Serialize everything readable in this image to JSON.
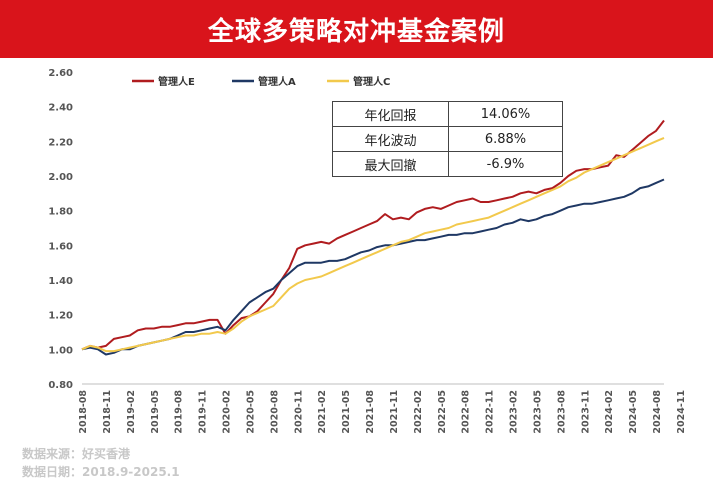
{
  "header": {
    "title": "全球多策略对冲基金案例"
  },
  "stats": [
    {
      "label": "年化回报",
      "value": "14.06%"
    },
    {
      "label": "年化波动",
      "value": "6.88%"
    },
    {
      "label": "最大回撤",
      "value": "-6.9%"
    }
  ],
  "footer": {
    "source": "数据来源：好买香港",
    "date": "数据日期：2018.9-2025.1"
  },
  "chart_data": {
    "type": "line",
    "y_ticks": [
      "2.60",
      "2.40",
      "2.20",
      "2.00",
      "1.80",
      "1.60",
      "1.40",
      "1.20",
      "1.00",
      "0.80"
    ],
    "ylim": [
      0.8,
      2.6
    ],
    "x_tick_labels": [
      "2018-08",
      "2018-11",
      "2019-02",
      "2019-05",
      "2019-08",
      "2019-11",
      "2020-02",
      "2020-05",
      "2020-08",
      "2020-11",
      "2021-02",
      "2021-05",
      "2021-08",
      "2021-11",
      "2022-02",
      "2022-05",
      "2022-08",
      "2022-11",
      "2023-02",
      "2023-05",
      "2023-08",
      "2023-11",
      "2024-02",
      "2024-05",
      "2024-08",
      "2024-11"
    ],
    "grid": false,
    "legend_position": "top-left",
    "series": [
      {
        "name": "管理人E",
        "color": "#b01c1f",
        "points": [
          [
            0,
            1.0
          ],
          [
            1,
            1.02
          ],
          [
            2,
            1.01
          ],
          [
            3,
            1.02
          ],
          [
            4,
            1.06
          ],
          [
            5,
            1.07
          ],
          [
            6,
            1.08
          ],
          [
            7,
            1.11
          ],
          [
            8,
            1.12
          ],
          [
            9,
            1.12
          ],
          [
            10,
            1.13
          ],
          [
            11,
            1.13
          ],
          [
            12,
            1.14
          ],
          [
            13,
            1.15
          ],
          [
            14,
            1.15
          ],
          [
            15,
            1.16
          ],
          [
            16,
            1.17
          ],
          [
            17,
            1.17
          ],
          [
            18,
            1.09
          ],
          [
            19,
            1.14
          ],
          [
            20,
            1.18
          ],
          [
            21,
            1.19
          ],
          [
            22,
            1.22
          ],
          [
            23,
            1.27
          ],
          [
            24,
            1.32
          ],
          [
            25,
            1.4
          ],
          [
            26,
            1.47
          ],
          [
            27,
            1.58
          ],
          [
            28,
            1.6
          ],
          [
            29,
            1.61
          ],
          [
            30,
            1.62
          ],
          [
            31,
            1.61
          ],
          [
            32,
            1.64
          ],
          [
            33,
            1.66
          ],
          [
            34,
            1.68
          ],
          [
            35,
            1.7
          ],
          [
            36,
            1.72
          ],
          [
            37,
            1.74
          ],
          [
            38,
            1.78
          ],
          [
            39,
            1.75
          ],
          [
            40,
            1.76
          ],
          [
            41,
            1.75
          ],
          [
            42,
            1.79
          ],
          [
            43,
            1.81
          ],
          [
            44,
            1.82
          ],
          [
            45,
            1.81
          ],
          [
            46,
            1.83
          ],
          [
            47,
            1.85
          ],
          [
            48,
            1.86
          ],
          [
            49,
            1.87
          ],
          [
            50,
            1.85
          ],
          [
            51,
            1.85
          ],
          [
            52,
            1.86
          ],
          [
            53,
            1.87
          ],
          [
            54,
            1.88
          ],
          [
            55,
            1.9
          ],
          [
            56,
            1.91
          ],
          [
            57,
            1.9
          ],
          [
            58,
            1.92
          ],
          [
            59,
            1.93
          ],
          [
            60,
            1.96
          ],
          [
            61,
            2.0
          ],
          [
            62,
            2.03
          ],
          [
            63,
            2.04
          ],
          [
            64,
            2.04
          ],
          [
            65,
            2.05
          ],
          [
            66,
            2.06
          ],
          [
            67,
            2.12
          ],
          [
            68,
            2.11
          ],
          [
            69,
            2.15
          ],
          [
            70,
            2.19
          ],
          [
            71,
            2.23
          ],
          [
            72,
            2.26
          ],
          [
            73,
            2.32
          ]
        ]
      },
      {
        "name": "管理人A",
        "color": "#1f3864",
        "points": [
          [
            0,
            1.0
          ],
          [
            1,
            1.01
          ],
          [
            2,
            1.0
          ],
          [
            3,
            0.97
          ],
          [
            4,
            0.98
          ],
          [
            5,
            1.0
          ],
          [
            6,
            1.0
          ],
          [
            7,
            1.02
          ],
          [
            8,
            1.03
          ],
          [
            9,
            1.04
          ],
          [
            10,
            1.05
          ],
          [
            11,
            1.06
          ],
          [
            12,
            1.08
          ],
          [
            13,
            1.1
          ],
          [
            14,
            1.1
          ],
          [
            15,
            1.11
          ],
          [
            16,
            1.12
          ],
          [
            17,
            1.13
          ],
          [
            18,
            1.11
          ],
          [
            19,
            1.17
          ],
          [
            20,
            1.22
          ],
          [
            21,
            1.27
          ],
          [
            22,
            1.3
          ],
          [
            23,
            1.33
          ],
          [
            24,
            1.35
          ],
          [
            25,
            1.4
          ],
          [
            26,
            1.44
          ],
          [
            27,
            1.48
          ],
          [
            28,
            1.5
          ],
          [
            29,
            1.5
          ],
          [
            30,
            1.5
          ],
          [
            31,
            1.51
          ],
          [
            32,
            1.51
          ],
          [
            33,
            1.52
          ],
          [
            34,
            1.54
          ],
          [
            35,
            1.56
          ],
          [
            36,
            1.57
          ],
          [
            37,
            1.59
          ],
          [
            38,
            1.6
          ],
          [
            39,
            1.6
          ],
          [
            40,
            1.61
          ],
          [
            41,
            1.62
          ],
          [
            42,
            1.63
          ],
          [
            43,
            1.63
          ],
          [
            44,
            1.64
          ],
          [
            45,
            1.65
          ],
          [
            46,
            1.66
          ],
          [
            47,
            1.66
          ],
          [
            48,
            1.67
          ],
          [
            49,
            1.67
          ],
          [
            50,
            1.68
          ],
          [
            51,
            1.69
          ],
          [
            52,
            1.7
          ],
          [
            53,
            1.72
          ],
          [
            54,
            1.73
          ],
          [
            55,
            1.75
          ],
          [
            56,
            1.74
          ],
          [
            57,
            1.75
          ],
          [
            58,
            1.77
          ],
          [
            59,
            1.78
          ],
          [
            60,
            1.8
          ],
          [
            61,
            1.82
          ],
          [
            62,
            1.83
          ],
          [
            63,
            1.84
          ],
          [
            64,
            1.84
          ],
          [
            65,
            1.85
          ],
          [
            66,
            1.86
          ],
          [
            67,
            1.87
          ],
          [
            68,
            1.88
          ],
          [
            69,
            1.9
          ],
          [
            70,
            1.93
          ],
          [
            71,
            1.94
          ],
          [
            72,
            1.96
          ],
          [
            73,
            1.98
          ]
        ]
      },
      {
        "name": "管理人C",
        "color": "#f2c94c",
        "points": [
          [
            0,
            1.0
          ],
          [
            1,
            1.02
          ],
          [
            2,
            1.01
          ],
          [
            3,
            0.99
          ],
          [
            4,
            0.99
          ],
          [
            5,
            1.0
          ],
          [
            6,
            1.01
          ],
          [
            7,
            1.02
          ],
          [
            8,
            1.03
          ],
          [
            9,
            1.04
          ],
          [
            10,
            1.05
          ],
          [
            11,
            1.06
          ],
          [
            12,
            1.07
          ],
          [
            13,
            1.08
          ],
          [
            14,
            1.08
          ],
          [
            15,
            1.09
          ],
          [
            16,
            1.09
          ],
          [
            17,
            1.1
          ],
          [
            18,
            1.09
          ],
          [
            19,
            1.12
          ],
          [
            20,
            1.16
          ],
          [
            21,
            1.19
          ],
          [
            22,
            1.21
          ],
          [
            23,
            1.23
          ],
          [
            24,
            1.25
          ],
          [
            25,
            1.3
          ],
          [
            26,
            1.35
          ],
          [
            27,
            1.38
          ],
          [
            28,
            1.4
          ],
          [
            29,
            1.41
          ],
          [
            30,
            1.42
          ],
          [
            31,
            1.44
          ],
          [
            32,
            1.46
          ],
          [
            33,
            1.48
          ],
          [
            34,
            1.5
          ],
          [
            35,
            1.52
          ],
          [
            36,
            1.54
          ],
          [
            37,
            1.56
          ],
          [
            38,
            1.58
          ],
          [
            39,
            1.6
          ],
          [
            40,
            1.62
          ],
          [
            41,
            1.63
          ],
          [
            42,
            1.65
          ],
          [
            43,
            1.67
          ],
          [
            44,
            1.68
          ],
          [
            45,
            1.69
          ],
          [
            46,
            1.7
          ],
          [
            47,
            1.72
          ],
          [
            48,
            1.73
          ],
          [
            49,
            1.74
          ],
          [
            50,
            1.75
          ],
          [
            51,
            1.76
          ],
          [
            52,
            1.78
          ],
          [
            53,
            1.8
          ],
          [
            54,
            1.82
          ],
          [
            55,
            1.84
          ],
          [
            56,
            1.86
          ],
          [
            57,
            1.88
          ],
          [
            58,
            1.9
          ],
          [
            59,
            1.92
          ],
          [
            60,
            1.94
          ],
          [
            61,
            1.97
          ],
          [
            62,
            1.99
          ],
          [
            63,
            2.02
          ],
          [
            64,
            2.04
          ],
          [
            65,
            2.06
          ],
          [
            66,
            2.08
          ],
          [
            67,
            2.1
          ],
          [
            68,
            2.12
          ],
          [
            69,
            2.14
          ],
          [
            70,
            2.16
          ],
          [
            71,
            2.18
          ],
          [
            72,
            2.2
          ],
          [
            73,
            2.22
          ]
        ]
      }
    ]
  }
}
